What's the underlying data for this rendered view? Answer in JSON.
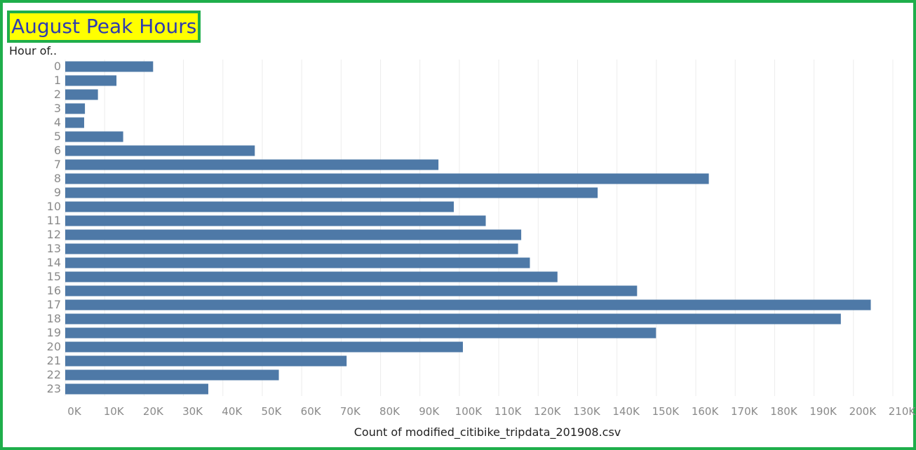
{
  "title": "August Peak Hours",
  "y_header": "Hour of..",
  "chart_data": {
    "type": "bar",
    "orientation": "horizontal",
    "title": "August Peak Hours",
    "ylabel": "Hour of..",
    "xlabel": "Count of modified_citibike_tripdata_201908.csv",
    "categories": [
      "0",
      "1",
      "2",
      "3",
      "4",
      "5",
      "6",
      "7",
      "8",
      "9",
      "10",
      "11",
      "12",
      "13",
      "14",
      "15",
      "16",
      "17",
      "18",
      "19",
      "20",
      "21",
      "22",
      "23"
    ],
    "values": [
      22300,
      13000,
      8300,
      5000,
      4800,
      14700,
      48100,
      94700,
      163300,
      135100,
      98600,
      106700,
      115700,
      114900,
      117900,
      124900,
      145100,
      204400,
      196800,
      149900,
      100900,
      71400,
      54200,
      36300
    ],
    "xlim": [
      0,
      210000
    ],
    "x_tick_labels": [
      "0K",
      "10K",
      "20K",
      "30K",
      "40K",
      "50K",
      "60K",
      "70K",
      "80K",
      "90K",
      "100K",
      "110K",
      "120K",
      "130K",
      "140K",
      "150K",
      "160K",
      "170K",
      "180K",
      "190K",
      "200K",
      "210K"
    ],
    "grid": "vertical",
    "bar_color": "#4e79a7"
  },
  "colors": {
    "frame": "#1fae4b",
    "title_bg": "#ffff00",
    "title_text": "#2e3bb0"
  }
}
